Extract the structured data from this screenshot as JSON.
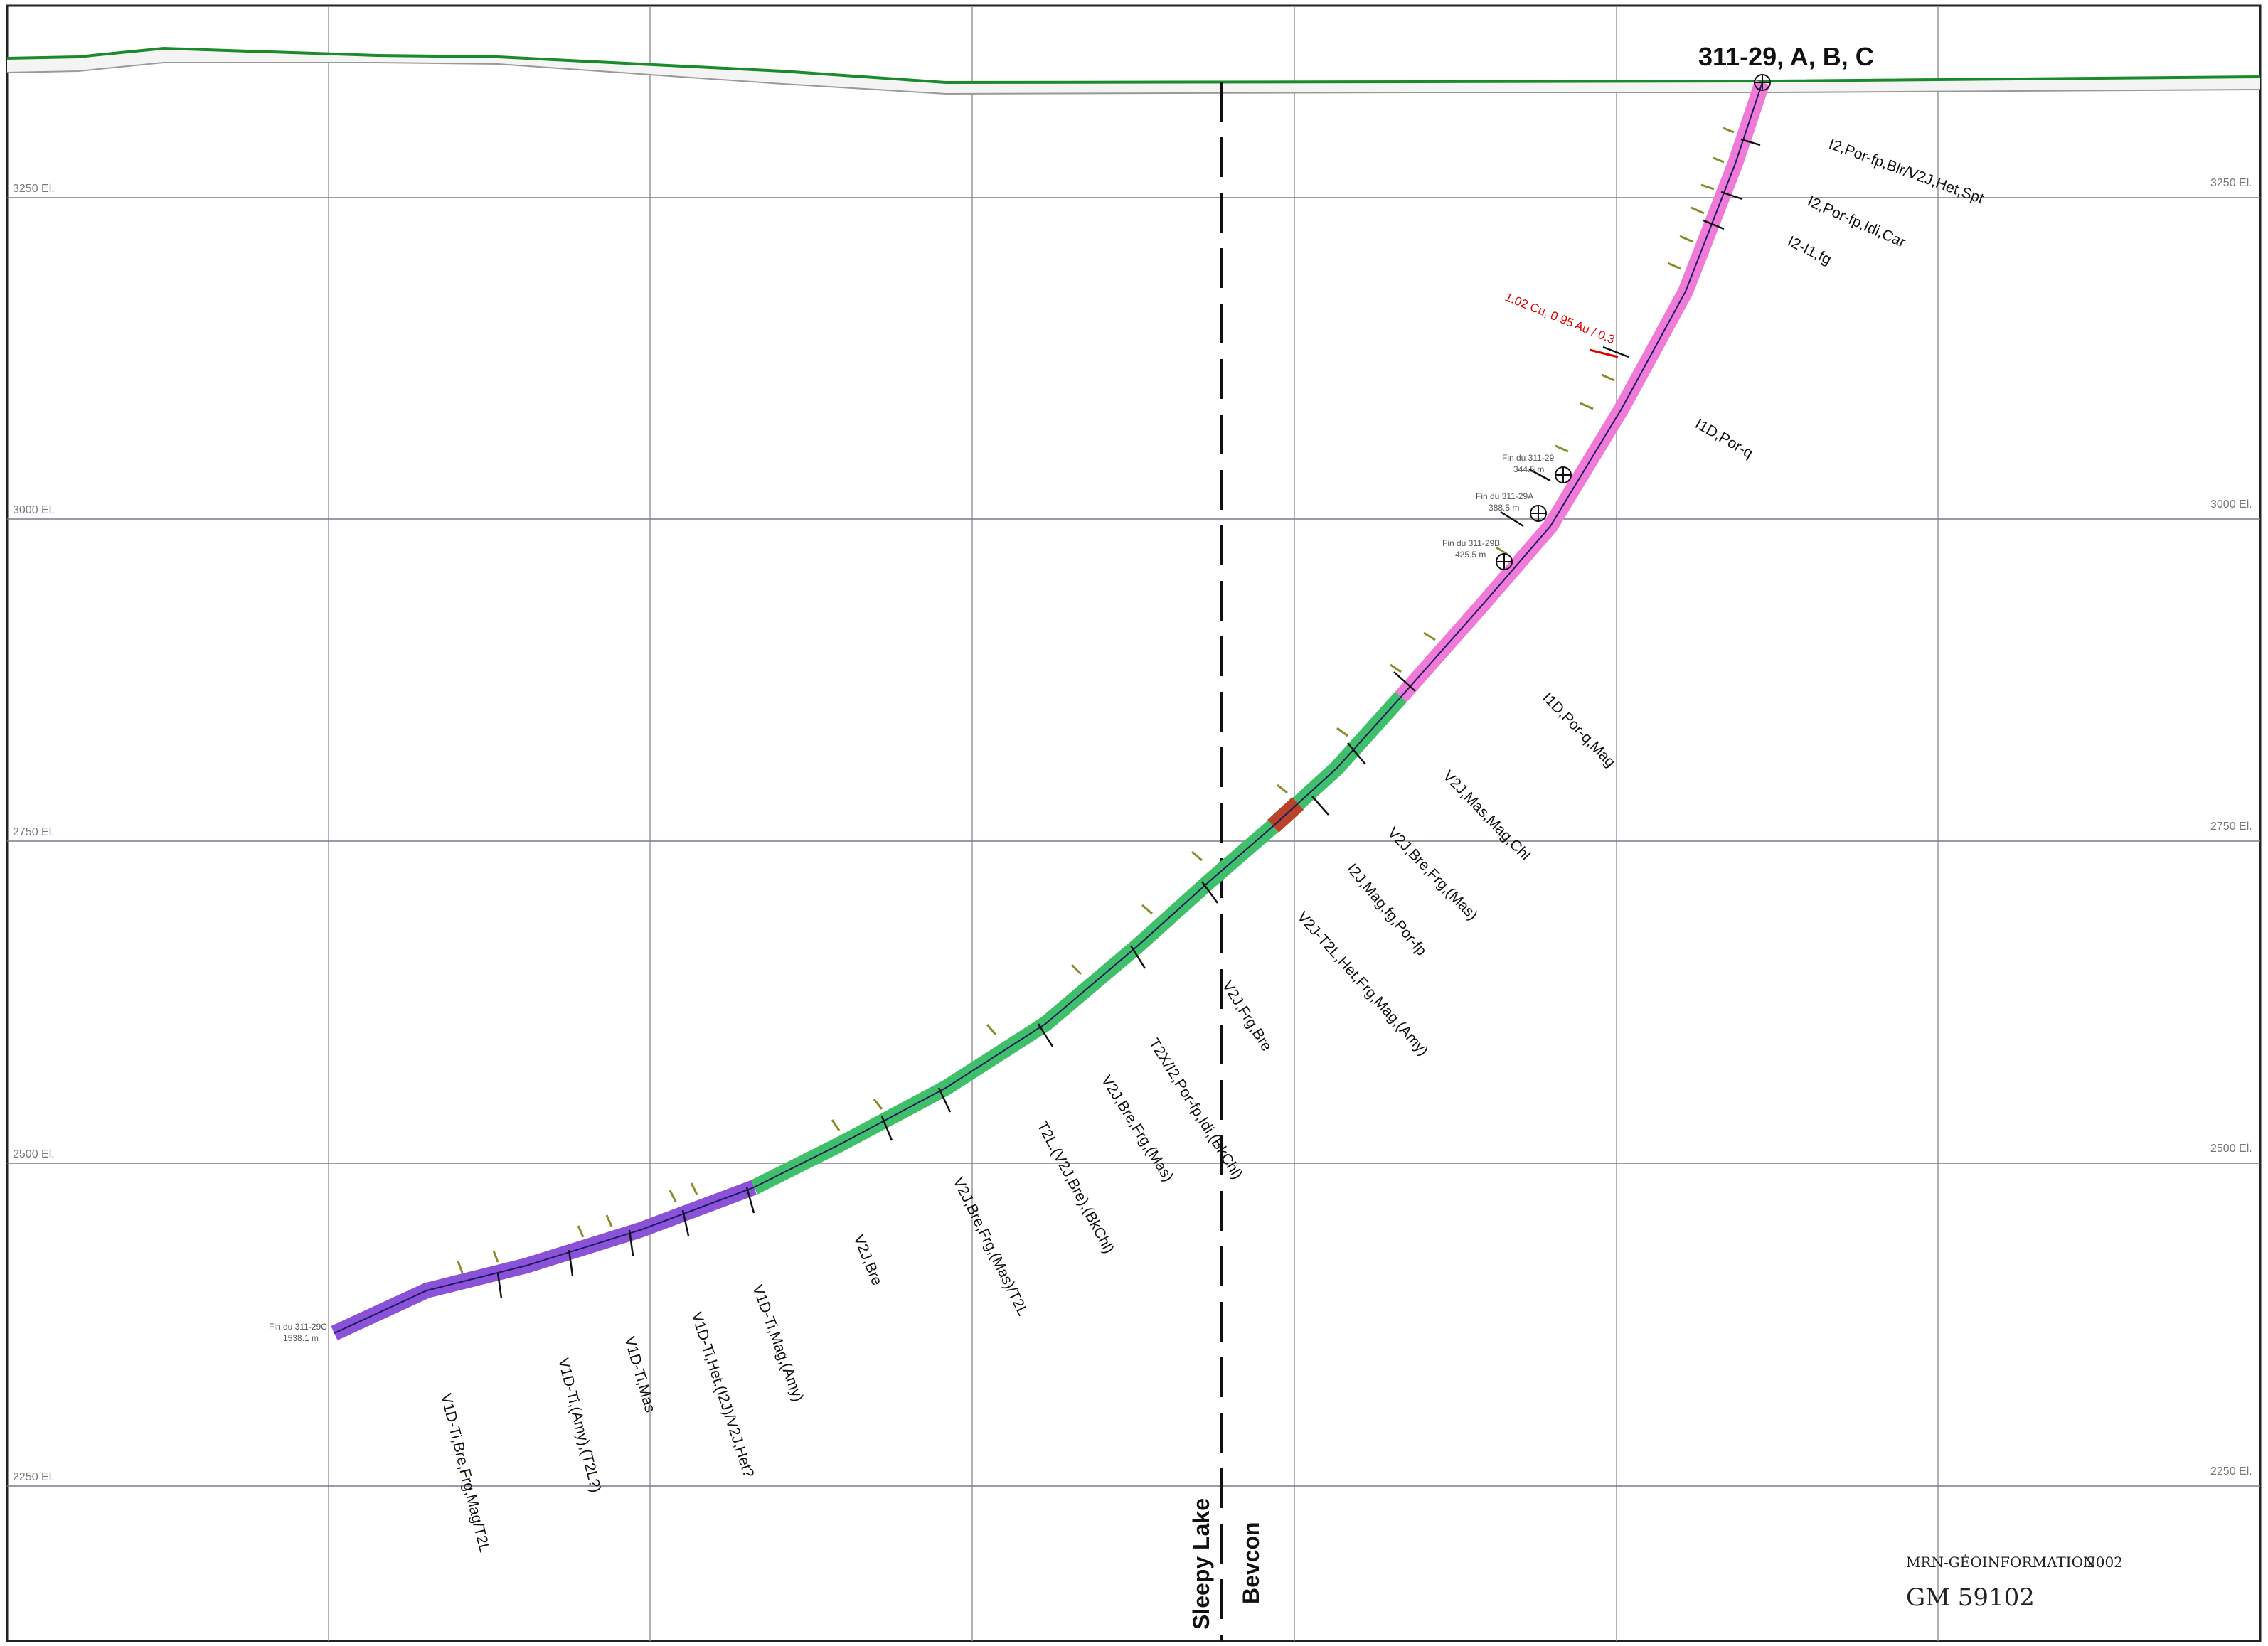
{
  "hole": {
    "title": "311-29, A, B, C"
  },
  "elevations": [
    {
      "value": 3250,
      "label": "3250 El."
    },
    {
      "value": 3000,
      "label": "3000 El."
    },
    {
      "value": 2750,
      "label": "2750 El."
    },
    {
      "value": 2500,
      "label": "2500 El."
    },
    {
      "value": 2250,
      "label": "2250 El."
    }
  ],
  "assay": {
    "text": "1.02 Cu, 0.95 Au / 0.3",
    "color": "#e00000"
  },
  "hole_ends": [
    {
      "line1": "Fin du 311-29",
      "line2": "344.5 m"
    },
    {
      "line1": "Fin du 311-29A",
      "line2": "388.5 m"
    },
    {
      "line1": "Fin du 311-29B",
      "line2": "425.5 m"
    },
    {
      "line1": "Fin du 311-29C",
      "line2": "1538.1 m"
    }
  ],
  "units": [
    "I2,Por-fp,Blr/V2J,Het,Spt",
    "I2,Por-fp,Idi,Car",
    "I2-I1,fg",
    "I1D,Por-q",
    "I1D,Por-q,Mag",
    "V2J,Mas,Mag,Chl",
    "V2J,Bre,Frg,(Mas)",
    "I2J,Mag,fg,Por-fp",
    "V2J-T2L,Het,Frg,Mag,(Amy)",
    "V2J,Frg,Bre",
    "T2X/I2,Por-fp,Idi,(BkChl)",
    "V2J,Bre,Frg,(Mas)",
    "T2L,(V2J,Bre),(BkChl)",
    "V2J,Bre,Frg,(Mas)/T2L",
    "V2J,Bre",
    "V1D-Ti,Mag,(Amy)",
    "V1D-Ti,Het,(I2J)/V2J,Het?",
    "V1D-Ti,Mas",
    "V1D-Ti,(Amy),(T2L?)",
    "V1D-Ti,Bre,Frg,Mag/T2L"
  ],
  "boundary": {
    "left": "Sleepy Lake",
    "right": "Bevcon"
  },
  "footer": {
    "agency": "MRN-GÉOINFORMATION",
    "year": "2002",
    "id": "GM 59102"
  },
  "colors": {
    "frame": "#222222",
    "grid": "#888888",
    "topo": "#1a8a2a",
    "intrusive": "#f07ad8",
    "volcanic": "#3fbf6a",
    "mafic": "#8a52d8",
    "alteration": "#b8422a",
    "mineral_ticks": "#8a8a2a"
  },
  "segment_types": [
    "intrusive",
    "volcanic",
    "alteration",
    "volcanic",
    "mafic"
  ]
}
